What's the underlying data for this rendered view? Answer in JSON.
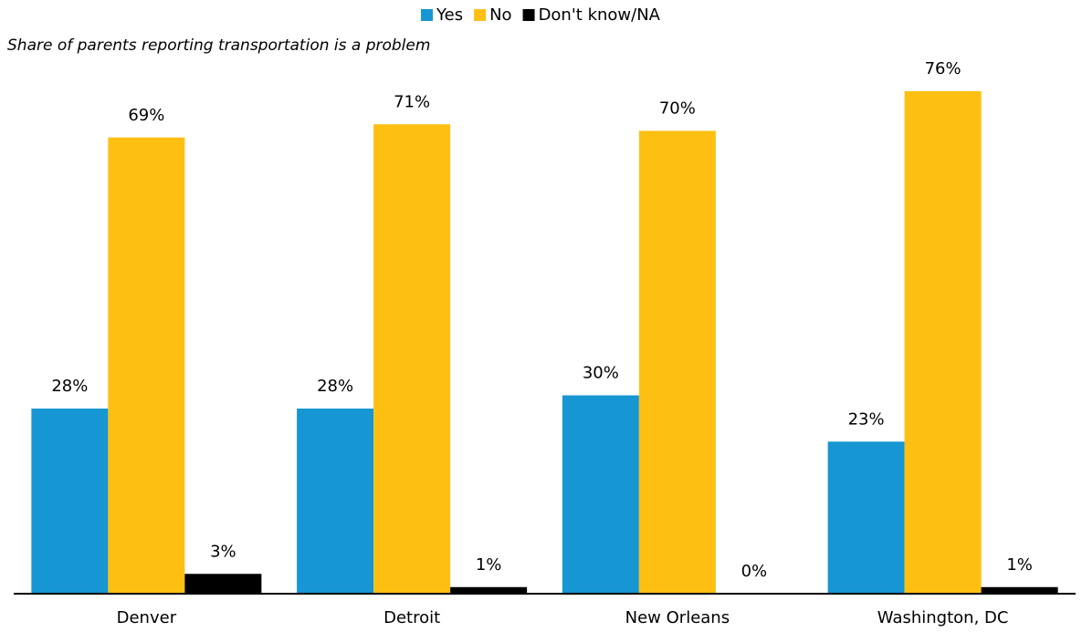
{
  "chart_data": {
    "type": "bar",
    "title": "Share of parents reporting transportation is a problem",
    "categories": [
      "Denver",
      "Detroit",
      "New Orleans",
      "Washington, DC"
    ],
    "series": [
      {
        "name": "Yes",
        "color": "#1696d2",
        "values": [
          28,
          28,
          30,
          23
        ],
        "value_labels": [
          "28%",
          "28%",
          "30%",
          "23%"
        ]
      },
      {
        "name": "No",
        "color": "#fdbf11",
        "values": [
          69,
          71,
          70,
          76
        ],
        "value_labels": [
          "69%",
          "71%",
          "70%",
          "76%"
        ]
      },
      {
        "name": "Don't know/NA",
        "color": "#000000",
        "values": [
          3,
          1,
          0,
          1
        ],
        "value_labels": [
          "3%",
          "1%",
          "0%",
          "1%"
        ]
      }
    ],
    "ylim": [
      0,
      80
    ],
    "grid": false,
    "legend": "top"
  }
}
